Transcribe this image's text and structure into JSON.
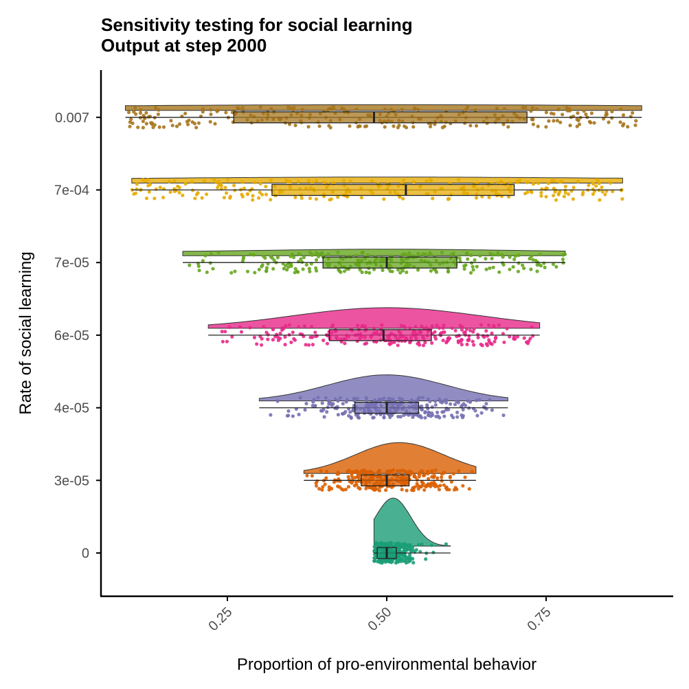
{
  "chart_data": {
    "type": "raincloud",
    "title": "Sensitivity testing for social learning",
    "subtitle": "Output at step 2000",
    "xlabel": "Proportion of pro-environmental behavior",
    "ylabel": "Rate of social learning",
    "xlim": [
      0.07,
      0.92
    ],
    "x_ticks": [
      0.25,
      0.5,
      0.75
    ],
    "x_tick_labels": [
      "0.25",
      "0.50",
      "0.75"
    ],
    "grid": false,
    "legend": "none",
    "series": [
      {
        "category": "0",
        "color": "#1b9e77",
        "min": 0.48,
        "q1": 0.485,
        "median": 0.5,
        "q3": 0.515,
        "max": 0.6,
        "density_peak": 0.51,
        "density_height": 0.7
      },
      {
        "category": "3e-05",
        "color": "#d95f02",
        "min": 0.37,
        "q1": 0.46,
        "median": 0.5,
        "q3": 0.535,
        "max": 0.64,
        "density_peak": 0.52,
        "density_height": 0.45
      },
      {
        "category": "4e-05",
        "color": "#7570b3",
        "min": 0.3,
        "q1": 0.45,
        "median": 0.5,
        "q3": 0.55,
        "max": 0.69,
        "density_peak": 0.5,
        "density_height": 0.38
      },
      {
        "category": "6e-05",
        "color": "#e7298a",
        "min": 0.22,
        "q1": 0.41,
        "median": 0.495,
        "q3": 0.57,
        "max": 0.74,
        "density_peak": 0.5,
        "density_height": 0.3
      },
      {
        "category": "7e-05",
        "color": "#66a61e",
        "min": 0.18,
        "q1": 0.4,
        "median": 0.5,
        "q3": 0.61,
        "max": 0.78,
        "density_peak": 0.5,
        "density_height": 0.27
      },
      {
        "category": "7e-04",
        "color": "#e6ab02",
        "min": 0.1,
        "q1": 0.32,
        "median": 0.53,
        "q3": 0.7,
        "max": 0.87,
        "density_peak": 0.5,
        "density_height": 0.25
      },
      {
        "category": "0.007",
        "color": "#a6761d",
        "min": 0.09,
        "q1": 0.26,
        "median": 0.48,
        "q3": 0.72,
        "max": 0.9,
        "density_peak": 0.5,
        "density_height": 0.24
      }
    ]
  }
}
